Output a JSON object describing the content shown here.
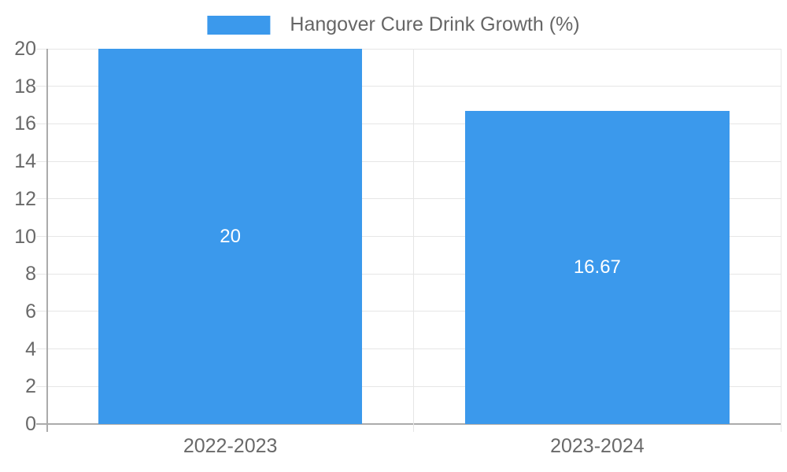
{
  "chart_data": {
    "type": "bar",
    "title": "Hangover Cure Drink Growth (%)",
    "categories": [
      "2022-2023",
      "2023-2024"
    ],
    "series": [
      {
        "name": "Hangover Cure Drink Growth (%)",
        "values": [
          20,
          16.67
        ]
      }
    ],
    "value_labels": [
      "20",
      "16.67"
    ],
    "xlabel": "",
    "ylabel": "",
    "ylim": [
      0,
      20
    ],
    "yticks": [
      0,
      2,
      4,
      6,
      8,
      10,
      12,
      14,
      16,
      18,
      20
    ],
    "grid": true,
    "legend_position": "top",
    "colors": {
      "bar": "#3B99EC",
      "grid_line": "#e6e6e6",
      "zero_line": "#ababab",
      "tick_text": "#696969",
      "legend_text": "#666666",
      "bar_label_text": "#ffffff",
      "background": "#ffffff"
    }
  }
}
